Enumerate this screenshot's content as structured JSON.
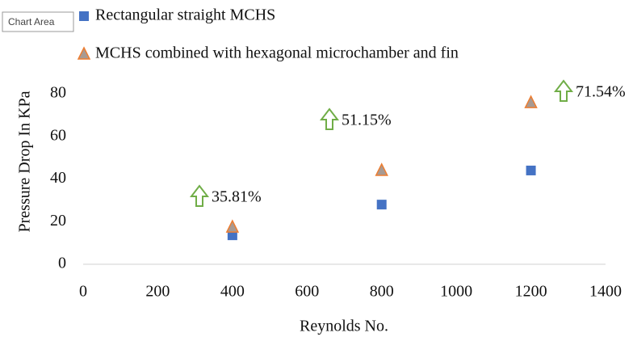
{
  "tooltip": "Chart Area",
  "chart_data": {
    "type": "scatter",
    "xlabel": "Reynolds No.",
    "ylabel": "Pressure Drop In KPa",
    "series": [
      {
        "name": "Rectangular straight MCHS",
        "color": "#4472c4",
        "marker": "square",
        "x": [
          400,
          800,
          1200
        ],
        "values": [
          13.6,
          28,
          44
        ]
      },
      {
        "name": "MCHS combined with hexagonal microchamber and fin",
        "color": "#ed7d31",
        "marker": "triangle",
        "x": [
          400,
          800,
          1200
        ],
        "values": [
          17.4,
          44,
          75.8
        ]
      }
    ],
    "annotations": [
      "35.81%",
      "51.15%",
      "71.54%"
    ],
    "xlim": [
      0,
      1400
    ],
    "xticks": [
      0,
      200,
      400,
      600,
      800,
      1000,
      1200,
      1400
    ],
    "ylim": [
      0,
      80
    ],
    "yticks": [
      0,
      20,
      40,
      60,
      80
    ],
    "grid": false
  }
}
